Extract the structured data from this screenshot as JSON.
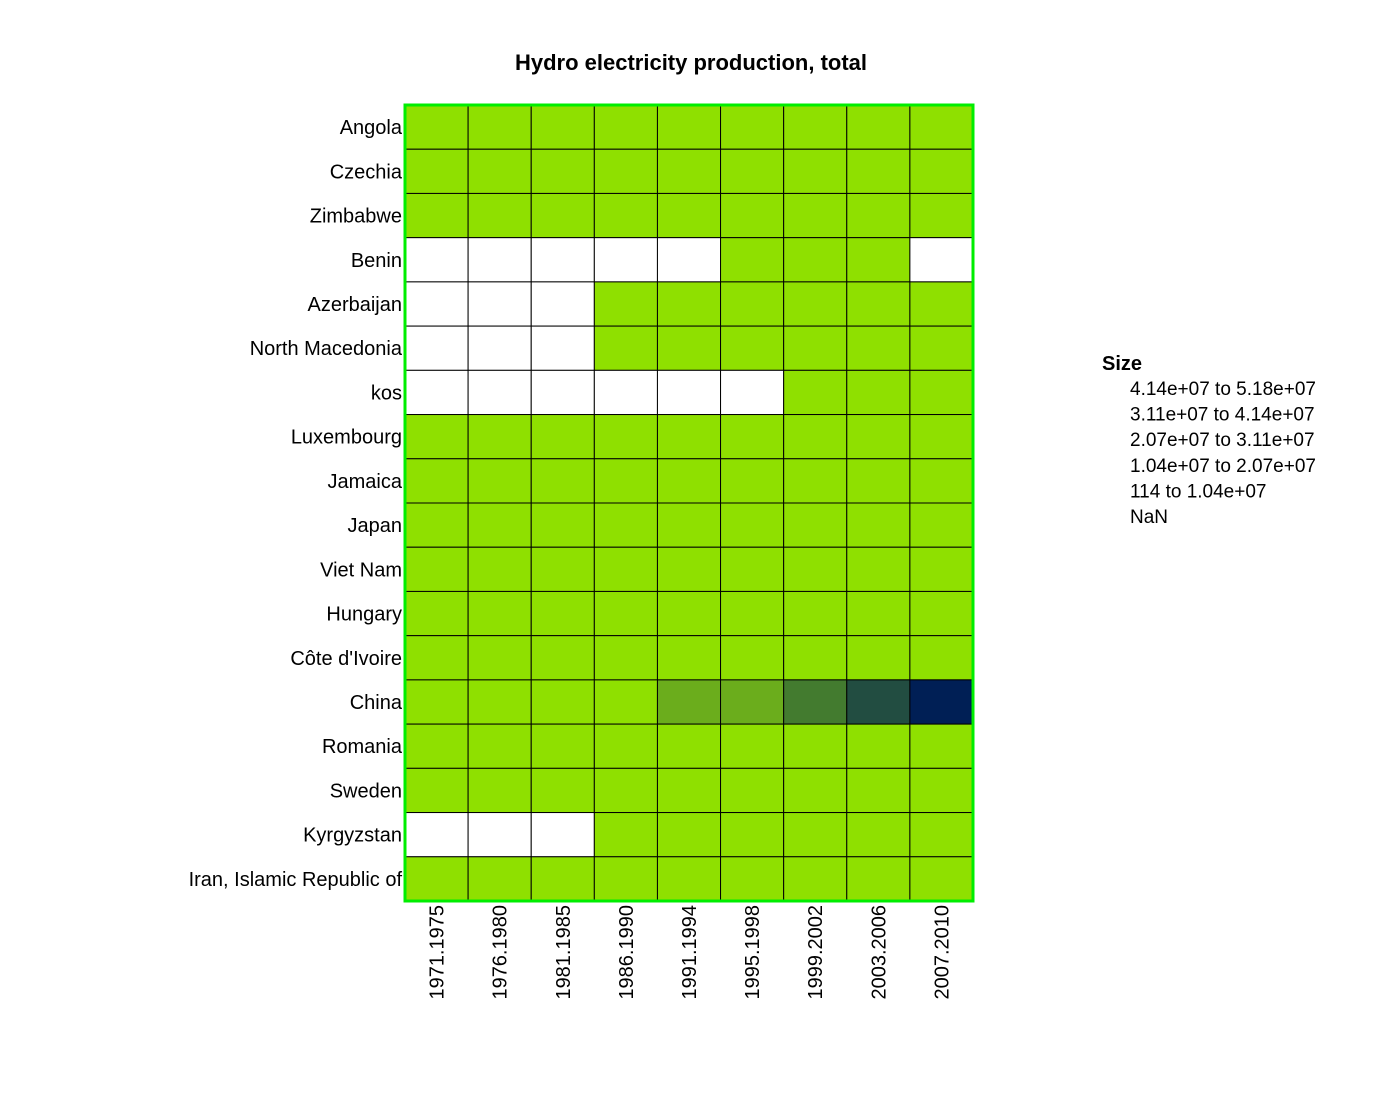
{
  "chart_data": {
    "type": "heatmap",
    "title": "Hydro electricity production, total",
    "rows": [
      "Angola",
      "Czechia",
      "Zimbabwe",
      "Benin",
      "Azerbaijan",
      "North Macedonia",
      "kos",
      "Luxembourg",
      "Jamaica",
      "Japan",
      "Viet Nam",
      "Hungary",
      "Côte d'Ivoire",
      "China",
      "Romania",
      "Sweden",
      "Kyrgyzstan",
      "Iran, Islamic Republic of"
    ],
    "columns": [
      "1971.1975",
      "1976.1980",
      "1981.1985",
      "1986.1990",
      "1991.1994",
      "1995.1998",
      "1999.2002",
      "2003.2006",
      "2007.2010"
    ],
    "values": [
      [
        1,
        1,
        1,
        1,
        1,
        1,
        1,
        1,
        1
      ],
      [
        1,
        1,
        1,
        1,
        1,
        1,
        1,
        1,
        1
      ],
      [
        1,
        1,
        1,
        1,
        1,
        1,
        1,
        1,
        1
      ],
      [
        null,
        null,
        null,
        null,
        null,
        1,
        1,
        1,
        null
      ],
      [
        null,
        null,
        null,
        1,
        1,
        1,
        1,
        1,
        1
      ],
      [
        null,
        null,
        null,
        1,
        1,
        1,
        1,
        1,
        1
      ],
      [
        null,
        null,
        null,
        null,
        null,
        null,
        1,
        1,
        1
      ],
      [
        1,
        1,
        1,
        1,
        1,
        1,
        1,
        1,
        1
      ],
      [
        1,
        1,
        1,
        1,
        1,
        1,
        1,
        1,
        1
      ],
      [
        1,
        1,
        1,
        1,
        1,
        1,
        1,
        1,
        1
      ],
      [
        1,
        1,
        1,
        1,
        1,
        1,
        1,
        1,
        1
      ],
      [
        1,
        1,
        1,
        1,
        1,
        1,
        1,
        1,
        1
      ],
      [
        1,
        1,
        1,
        1,
        1,
        1,
        1,
        1,
        1
      ],
      [
        1,
        1,
        1,
        1,
        2,
        2,
        3,
        4,
        5
      ],
      [
        1,
        1,
        1,
        1,
        1,
        1,
        1,
        1,
        1
      ],
      [
        1,
        1,
        1,
        1,
        1,
        1,
        1,
        1,
        1
      ],
      [
        null,
        null,
        null,
        1,
        1,
        1,
        1,
        1,
        1
      ],
      [
        1,
        1,
        1,
        1,
        1,
        1,
        1,
        1,
        1
      ]
    ],
    "level_colors": {
      "1": "#8fe000",
      "2": "#6bad1c",
      "3": "#437b2f",
      "4": "#224d41",
      "5": "#001f55",
      "nan": "#ffffff"
    },
    "legend": {
      "title": "Size",
      "entries": [
        {
          "from": "4.14e+07",
          "sep": "to",
          "to": "5.18e+07"
        },
        {
          "from": "3.11e+07",
          "sep": "to",
          "to": "4.14e+07"
        },
        {
          "from": "2.07e+07",
          "sep": "to",
          "to": "3.11e+07"
        },
        {
          "from": "1.04e+07",
          "sep": "to",
          "to": "2.07e+07"
        },
        {
          "from": "114",
          "sep": "to",
          "to": "1.04e+07"
        },
        {
          "from": "NaN",
          "sep": "",
          "to": ""
        }
      ]
    },
    "frame_color": "#00ee00",
    "grid_color": "#000000"
  }
}
